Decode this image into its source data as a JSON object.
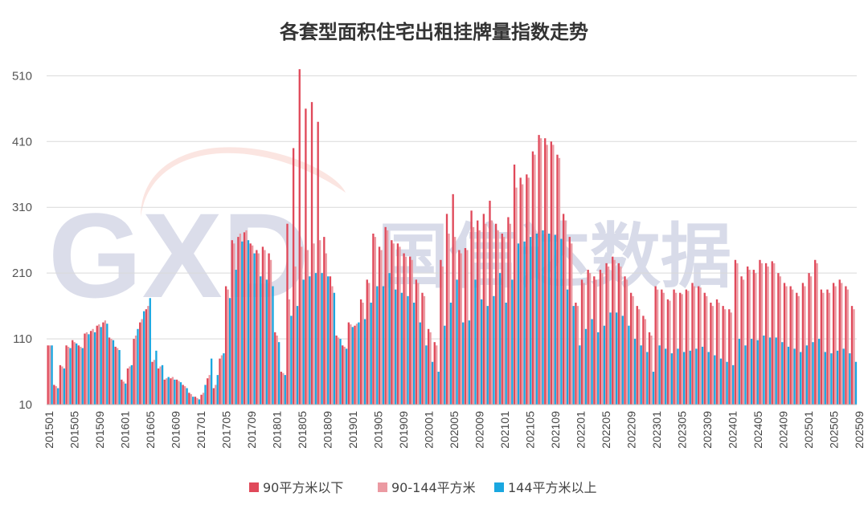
{
  "chart_data": {
    "type": "bar",
    "title": "各套型面积住宅出租挂牌量指数走势",
    "xlabel": "",
    "ylabel": "",
    "ylim": [
      10,
      530
    ],
    "yticks": [
      10,
      110,
      210,
      310,
      410,
      510
    ],
    "grid": true,
    "legend_position": "bottom",
    "colors": {
      "small": "#e0495a",
      "mid": "#eb9aa2",
      "large": "#1aa7e0"
    },
    "x_tick_labels": [
      "201501",
      "201505",
      "201509",
      "201601",
      "201605",
      "201609",
      "201701",
      "201705",
      "201709",
      "201801",
      "201805",
      "201809",
      "201901",
      "201905",
      "201909",
      "202001",
      "202005",
      "202009",
      "202101",
      "202105",
      "202109",
      "202201",
      "202205",
      "202209",
      "202301",
      "202305",
      "202309",
      "202401",
      "202405",
      "202409",
      "202501",
      "202505",
      "202509"
    ],
    "series": [
      {
        "name": "90平方米以下",
        "key": "small"
      },
      {
        "name": "90-144平方米",
        "key": "mid"
      },
      {
        "name": "144平方米以上",
        "key": "large"
      }
    ],
    "monthly": [
      [
        "201501",
        100,
        100,
        100
      ],
      [
        "201502",
        40,
        38,
        35
      ],
      [
        "201503",
        70,
        68,
        65
      ],
      [
        "201504",
        100,
        98,
        96
      ],
      [
        "201505",
        108,
        105,
        103
      ],
      [
        "201506",
        100,
        98,
        96
      ],
      [
        "201507",
        118,
        120,
        117
      ],
      [
        "201508",
        122,
        125,
        120
      ],
      [
        "201509",
        130,
        132,
        128
      ],
      [
        "201510",
        135,
        138,
        133
      ],
      [
        "201511",
        112,
        110,
        108
      ],
      [
        "201512",
        98,
        96,
        93
      ],
      [
        "201601",
        48,
        45,
        42
      ],
      [
        "201602",
        65,
        68,
        70
      ],
      [
        "201603",
        110,
        115,
        125
      ],
      [
        "201604",
        135,
        140,
        152
      ],
      [
        "201605",
        155,
        160,
        172
      ],
      [
        "201606",
        75,
        78,
        92
      ],
      [
        "201607",
        65,
        68,
        70
      ],
      [
        "201608",
        48,
        50,
        52
      ],
      [
        "201609",
        50,
        52,
        48
      ],
      [
        "201610",
        48,
        46,
        44
      ],
      [
        "201611",
        40,
        38,
        35
      ],
      [
        "201612",
        28,
        26,
        22
      ],
      [
        "201701",
        22,
        20,
        18
      ],
      [
        "201702",
        25,
        28,
        40
      ],
      [
        "201703",
        50,
        55,
        80
      ],
      [
        "201704",
        35,
        40,
        55
      ],
      [
        "201705",
        80,
        85,
        88
      ],
      [
        "201706",
        190,
        185,
        172
      ],
      [
        "201707",
        260,
        255,
        215
      ],
      [
        "201708",
        265,
        270,
        258
      ],
      [
        "201709",
        272,
        275,
        260
      ],
      [
        "201710",
        255,
        252,
        240
      ],
      [
        "201711",
        245,
        240,
        205
      ],
      [
        "201712",
        250,
        245,
        200
      ],
      [
        "201713",
        240,
        230,
        190
      ],
      [
        "201801",
        120,
        115,
        105
      ],
      [
        "201802",
        60,
        58,
        55
      ],
      [
        "201803",
        285,
        170,
        145
      ],
      [
        "201804",
        400,
        220,
        160
      ],
      [
        "201805",
        520,
        250,
        200
      ],
      [
        "201806",
        460,
        245,
        205
      ],
      [
        "201807",
        470,
        255,
        210
      ],
      [
        "201808",
        440,
        260,
        210
      ],
      [
        "201809",
        265,
        240,
        205
      ],
      [
        "201810",
        205,
        190,
        180
      ],
      [
        "201811",
        115,
        112,
        110
      ],
      [
        "201812",
        100,
        98,
        95
      ],
      [
        "201901",
        135,
        132,
        128
      ],
      [
        "201902",
        130,
        133,
        135
      ],
      [
        "201903",
        170,
        165,
        140
      ],
      [
        "201904",
        200,
        195,
        165
      ],
      [
        "201905",
        270,
        265,
        190
      ],
      [
        "201906",
        250,
        245,
        190
      ],
      [
        "201907",
        280,
        275,
        210
      ],
      [
        "201908",
        260,
        255,
        185
      ],
      [
        "201909",
        255,
        250,
        180
      ],
      [
        "201910",
        240,
        235,
        175
      ],
      [
        "201911",
        235,
        230,
        165
      ],
      [
        "201912",
        200,
        195,
        135
      ],
      [
        "202001",
        180,
        175,
        100
      ],
      [
        "202002",
        125,
        120,
        75
      ],
      [
        "202003",
        105,
        100,
        60
      ],
      [
        "202004",
        230,
        220,
        130
      ],
      [
        "202005",
        300,
        270,
        165
      ],
      [
        "202006",
        330,
        265,
        200
      ],
      [
        "202007",
        245,
        240,
        135
      ],
      [
        "202008",
        248,
        245,
        138
      ],
      [
        "202009",
        305,
        280,
        200
      ],
      [
        "202010",
        290,
        275,
        170
      ],
      [
        "202011",
        300,
        285,
        160
      ],
      [
        "202012",
        320,
        290,
        175
      ],
      [
        "202013",
        285,
        275,
        210
      ],
      [
        "202101",
        270,
        265,
        165
      ],
      [
        "202102",
        295,
        285,
        200
      ],
      [
        "202103",
        375,
        340,
        255
      ],
      [
        "202104",
        355,
        345,
        258
      ],
      [
        "202105",
        360,
        355,
        265
      ],
      [
        "202106",
        395,
        390,
        270
      ],
      [
        "202107",
        420,
        415,
        275
      ],
      [
        "202108",
        415,
        405,
        270
      ],
      [
        "202109",
        410,
        405,
        268
      ],
      [
        "202110",
        390,
        385,
        262
      ],
      [
        "202111",
        300,
        290,
        185
      ],
      [
        "202112",
        265,
        255,
        160
      ],
      [
        "202201",
        165,
        160,
        100
      ],
      [
        "202202",
        200,
        195,
        125
      ],
      [
        "202203",
        215,
        210,
        140
      ],
      [
        "202204",
        205,
        200,
        120
      ],
      [
        "202205",
        215,
        210,
        130
      ],
      [
        "202206",
        225,
        220,
        150
      ],
      [
        "202207",
        235,
        230,
        150
      ],
      [
        "202208",
        225,
        220,
        145
      ],
      [
        "202209",
        205,
        200,
        130
      ],
      [
        "202210",
        180,
        175,
        110
      ],
      [
        "202211",
        160,
        155,
        100
      ],
      [
        "202212",
        145,
        140,
        90
      ],
      [
        "202301",
        120,
        115,
        60
      ],
      [
        "202302",
        190,
        185,
        100
      ],
      [
        "202303",
        185,
        180,
        95
      ],
      [
        "202304",
        170,
        168,
        88
      ],
      [
        "202305",
        185,
        180,
        95
      ],
      [
        "202306",
        180,
        178,
        90
      ],
      [
        "202307",
        185,
        183,
        92
      ],
      [
        "202308",
        195,
        190,
        95
      ],
      [
        "202309",
        190,
        188,
        98
      ],
      [
        "202310",
        180,
        175,
        90
      ],
      [
        "202311",
        165,
        160,
        85
      ],
      [
        "202312",
        170,
        165,
        80
      ],
      [
        "202313",
        160,
        155,
        75
      ],
      [
        "202401",
        155,
        150,
        70
      ],
      [
        "202402",
        230,
        225,
        110
      ],
      [
        "202403",
        205,
        200,
        100
      ],
      [
        "202404",
        220,
        215,
        110
      ],
      [
        "202405",
        215,
        210,
        108
      ],
      [
        "202406",
        230,
        225,
        115
      ],
      [
        "202407",
        225,
        220,
        112
      ],
      [
        "202408",
        228,
        225,
        112
      ],
      [
        "202409",
        210,
        205,
        105
      ],
      [
        "202410",
        195,
        190,
        98
      ],
      [
        "202411",
        190,
        185,
        95
      ],
      [
        "202412",
        180,
        175,
        90
      ],
      [
        "202501",
        195,
        190,
        100
      ],
      [
        "202502",
        210,
        205,
        105
      ],
      [
        "202503",
        230,
        225,
        110
      ],
      [
        "202504",
        185,
        180,
        90
      ],
      [
        "202505",
        185,
        180,
        88
      ],
      [
        "202506",
        195,
        190,
        92
      ],
      [
        "202507",
        200,
        195,
        95
      ],
      [
        "202508",
        190,
        185,
        88
      ],
      [
        "202509",
        160,
        155,
        75
      ]
    ]
  },
  "watermark": {
    "logo_text": "GXD",
    "brand_text": "国信达数据"
  }
}
